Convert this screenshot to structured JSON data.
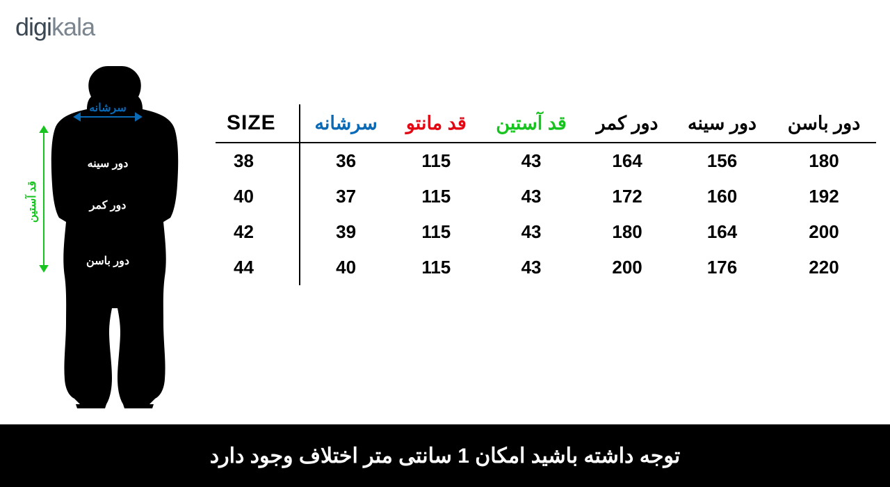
{
  "logo": {
    "part1": "digi",
    "part2": "kala"
  },
  "figure": {
    "labels": {
      "shoulder": "سرشانه",
      "bust": "دور سینه",
      "waist": "دور کمر",
      "hip": "دور باسن",
      "sleeve": "قد آستین"
    },
    "colors": {
      "shoulder": "#0a6ab6",
      "sleeve_arrow": "#17c41f",
      "body_arrow": "#000000",
      "silhouette": "#000000"
    }
  },
  "table": {
    "type": "table",
    "columns": [
      {
        "key": "size",
        "label": "SIZE",
        "color": "#000000"
      },
      {
        "key": "shoulder",
        "label": "سرشانه",
        "color": "#0a6ab6"
      },
      {
        "key": "length",
        "label": "قد مانتو",
        "color": "#e30613"
      },
      {
        "key": "sleeve",
        "label": "قد آستین",
        "color": "#17c41f"
      },
      {
        "key": "waist",
        "label": "دور کمر",
        "color": "#000000"
      },
      {
        "key": "bust",
        "label": "دور سینه",
        "color": "#000000"
      },
      {
        "key": "hip",
        "label": "دور باسن",
        "color": "#000000"
      }
    ],
    "rows": [
      {
        "size": "38",
        "shoulder": "36",
        "length": "115",
        "sleeve": "43",
        "waist": "164",
        "bust": "156",
        "hip": "180"
      },
      {
        "size": "40",
        "shoulder": "37",
        "length": "115",
        "sleeve": "43",
        "waist": "172",
        "bust": "160",
        "hip": "192"
      },
      {
        "size": "42",
        "shoulder": "39",
        "length": "115",
        "sleeve": "43",
        "waist": "180",
        "bust": "164",
        "hip": "200"
      },
      {
        "size": "44",
        "shoulder": "40",
        "length": "115",
        "sleeve": "43",
        "waist": "200",
        "bust": "176",
        "hip": "220"
      }
    ],
    "header_fontsize": 27,
    "cell_fontsize": 26,
    "border_color": "#000000"
  },
  "footer": {
    "text": "توجه داشته باشید امکان 1 سانتی متر اختلاف وجود دارد",
    "bg": "#000000",
    "fg": "#ffffff",
    "fontsize": 30
  }
}
